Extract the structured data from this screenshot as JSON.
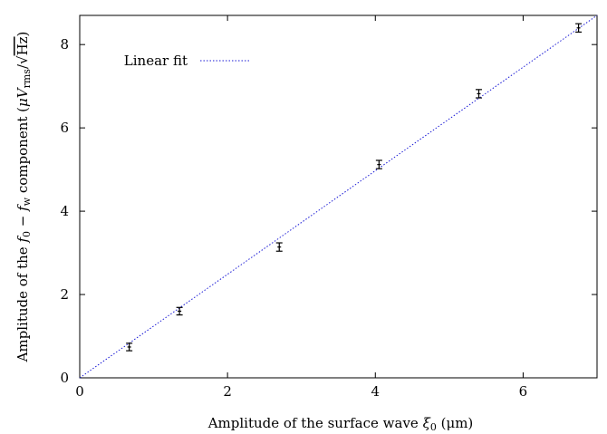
{
  "chart_data": {
    "type": "scatter",
    "xlabel_parts": {
      "prefix": "Amplitude of the surface wave ",
      "symbol": "ξ",
      "subscript": "0",
      "units": " (μm)"
    },
    "ylabel_parts": {
      "p1": "Amplitude of the ",
      "f0": "f",
      "f0_sub": "0",
      "minus": " − ",
      "fw": "f",
      "fw_sub": "w",
      "p2": " component (",
      "mu": "μ",
      "V": "V",
      "V_sub": "rms",
      "slash": "/",
      "sqrt": "√",
      "Hz": "Hz",
      "close": ")"
    },
    "xlim": [
      0,
      7
    ],
    "ylim": [
      0,
      8.7
    ],
    "x_ticks": [
      0,
      2,
      4,
      6
    ],
    "x_tick_labels": [
      "0",
      "2",
      "4",
      "6"
    ],
    "y_ticks": [
      0,
      2,
      4,
      6,
      8
    ],
    "y_tick_labels": [
      "0",
      "2",
      "4",
      "6",
      "8"
    ],
    "grid": false,
    "legend_position": "top-left",
    "series": [
      {
        "name": "",
        "kind": "points-with-errorbars",
        "color": "#000000",
        "points": [
          {
            "x": 0.67,
            "y": 0.74,
            "err": 0.09
          },
          {
            "x": 1.35,
            "y": 1.6,
            "err": 0.09
          },
          {
            "x": 2.7,
            "y": 3.14,
            "err": 0.1
          },
          {
            "x": 4.05,
            "y": 5.12,
            "err": 0.1
          },
          {
            "x": 5.4,
            "y": 6.82,
            "err": 0.1
          },
          {
            "x": 6.75,
            "y": 8.4,
            "err": 0.1
          }
        ]
      },
      {
        "name": "Linear fit",
        "kind": "line",
        "style": "dotted",
        "color": "#1a1ad6",
        "x": [
          0,
          7
        ],
        "y": [
          0,
          8.7
        ]
      }
    ]
  }
}
